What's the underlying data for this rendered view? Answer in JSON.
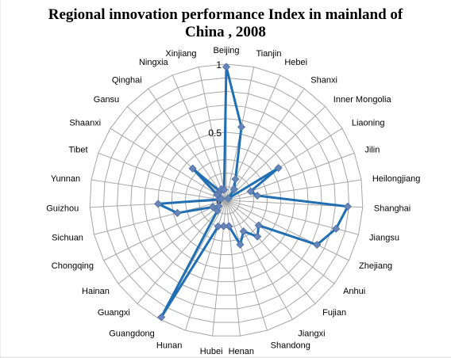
{
  "chart_data": {
    "type": "radar",
    "title": [
      "Regional innovation performance Index in mainland of",
      "China , 2008"
    ],
    "series": [
      {
        "name": "",
        "color": "#1f6fb2",
        "marker_color": "#6785b8"
      }
    ],
    "categories": [
      "Beijing",
      "Tianjin",
      "Hebei",
      "Shanxi",
      "Inner Mongolia",
      "Liaoning",
      "Jilin",
      "Heilongjiang",
      "Shanghai",
      "Jiangsu",
      "Zhejiang",
      "Anhui",
      "Fujian",
      "Jiangxi",
      "Shandong",
      "Henan",
      "Hubei",
      "Hunan",
      "Guangdong",
      "Guangxi",
      "Hainan",
      "Chongqing",
      "Sichuan",
      "Guizhou",
      "Yunnan",
      "Tibet",
      "Shaanxi",
      "Gansu",
      "Qinghai",
      "Ningxia",
      "Xinjiang"
    ],
    "values": [
      0.98,
      0.55,
      0.17,
      0.1,
      0.02,
      0.45,
      0.19,
      0.23,
      0.89,
      0.83,
      0.74,
      0.3,
      0.35,
      0.26,
      0.34,
      0.19,
      0.19,
      0.2,
      0.98,
      0.1,
      0.07,
      0.11,
      0.37,
      0.5,
      0.05,
      0.04,
      0.08,
      0.34,
      0.08,
      0.09,
      0.08
    ],
    "rlim": [
      0,
      1
    ],
    "tick_labels": [
      "0",
      "0.5",
      "1"
    ],
    "grid": true,
    "legend": "none"
  }
}
